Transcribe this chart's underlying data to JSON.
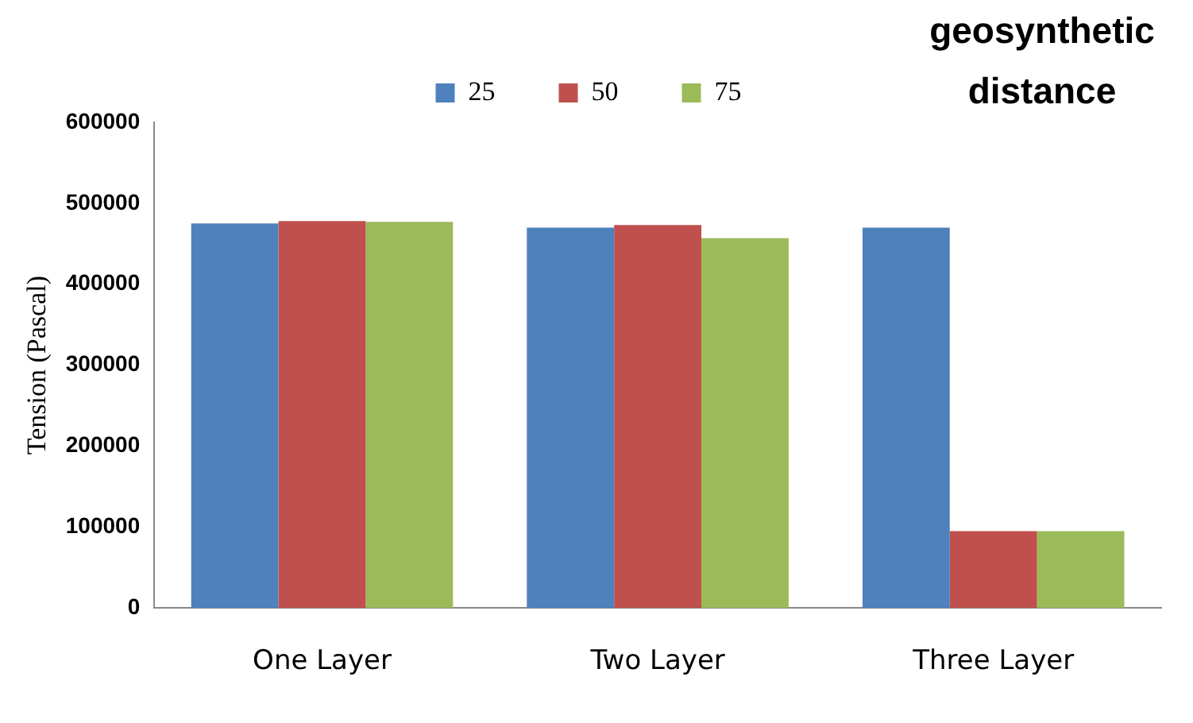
{
  "chart_data": {
    "type": "bar",
    "legend_title": "geosynthetic distance",
    "ylabel": "Tension (Pascal)",
    "categories": [
      "One Layer",
      "Two Layer",
      "Three Layer"
    ],
    "series": [
      {
        "name": "25",
        "color": "#4f81bd",
        "values": [
          475000,
          470000,
          470000
        ]
      },
      {
        "name": "50",
        "color": "#c0504d",
        "values": [
          478000,
          473000,
          95000
        ]
      },
      {
        "name": "75",
        "color": "#9bbb59",
        "values": [
          477000,
          457000,
          95000
        ]
      }
    ],
    "ylim": [
      0,
      600000
    ],
    "yticks": [
      0,
      100000,
      200000,
      300000,
      400000,
      500000,
      600000
    ],
    "grid": false,
    "legend": "top"
  }
}
